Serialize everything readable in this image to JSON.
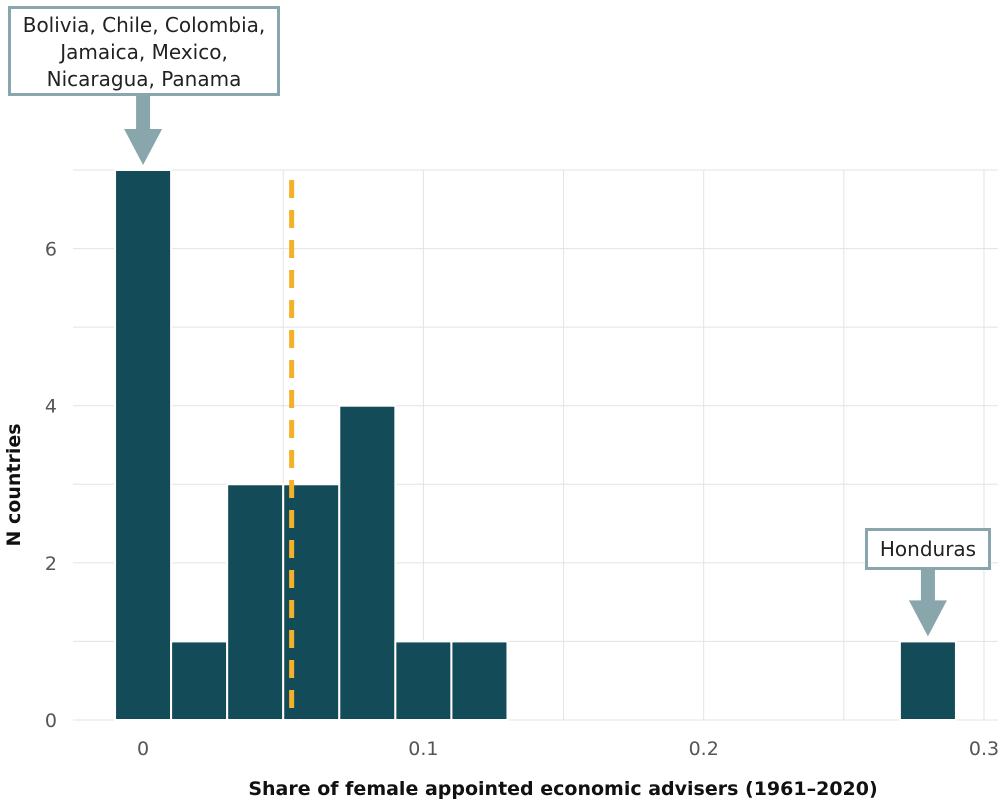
{
  "chart_data": {
    "type": "bar",
    "title": "",
    "xlabel": "Share of female appointed economic advisers (1961–2020)",
    "ylabel": "N countries",
    "xlim": [
      -0.025,
      0.305
    ],
    "ylim": [
      0,
      7
    ],
    "bin_width": 0.02,
    "bins": [
      {
        "x0": -0.01,
        "x1": 0.01,
        "count": 7
      },
      {
        "x0": 0.01,
        "x1": 0.03,
        "count": 1
      },
      {
        "x0": 0.03,
        "x1": 0.05,
        "count": 3
      },
      {
        "x0": 0.05,
        "x1": 0.07,
        "count": 3
      },
      {
        "x0": 0.07,
        "x1": 0.09,
        "count": 4
      },
      {
        "x0": 0.09,
        "x1": 0.11,
        "count": 1
      },
      {
        "x0": 0.11,
        "x1": 0.13,
        "count": 1
      },
      {
        "x0": 0.27,
        "x1": 0.29,
        "count": 1
      }
    ],
    "x_ticks": [
      {
        "value": 0,
        "label": "0"
      },
      {
        "value": 0.1,
        "label": "0.1"
      },
      {
        "value": 0.2,
        "label": "0.2"
      },
      {
        "value": 0.3,
        "label": "0.3"
      }
    ],
    "y_ticks": [
      {
        "value": 0,
        "label": "0"
      },
      {
        "value": 2,
        "label": "2"
      },
      {
        "value": 4,
        "label": "4"
      },
      {
        "value": 6,
        "label": "6"
      }
    ],
    "reference_line": {
      "x": 0.053,
      "style": "dashed"
    },
    "grid": true,
    "annotations": [
      {
        "lines": [
          "Bolivia, Chile, Colombia,",
          "Jamaica, Mexico,",
          "Nicaragua, Panama"
        ],
        "x": 0
      },
      {
        "lines": [
          "Honduras"
        ],
        "x": 0.28
      }
    ],
    "colors": {
      "bar": "#134b59",
      "bar_edge": "#ffffff",
      "reference_line": "#f4b028",
      "annotation": "#8aa6ad",
      "grid": "#e3e3e3"
    }
  }
}
